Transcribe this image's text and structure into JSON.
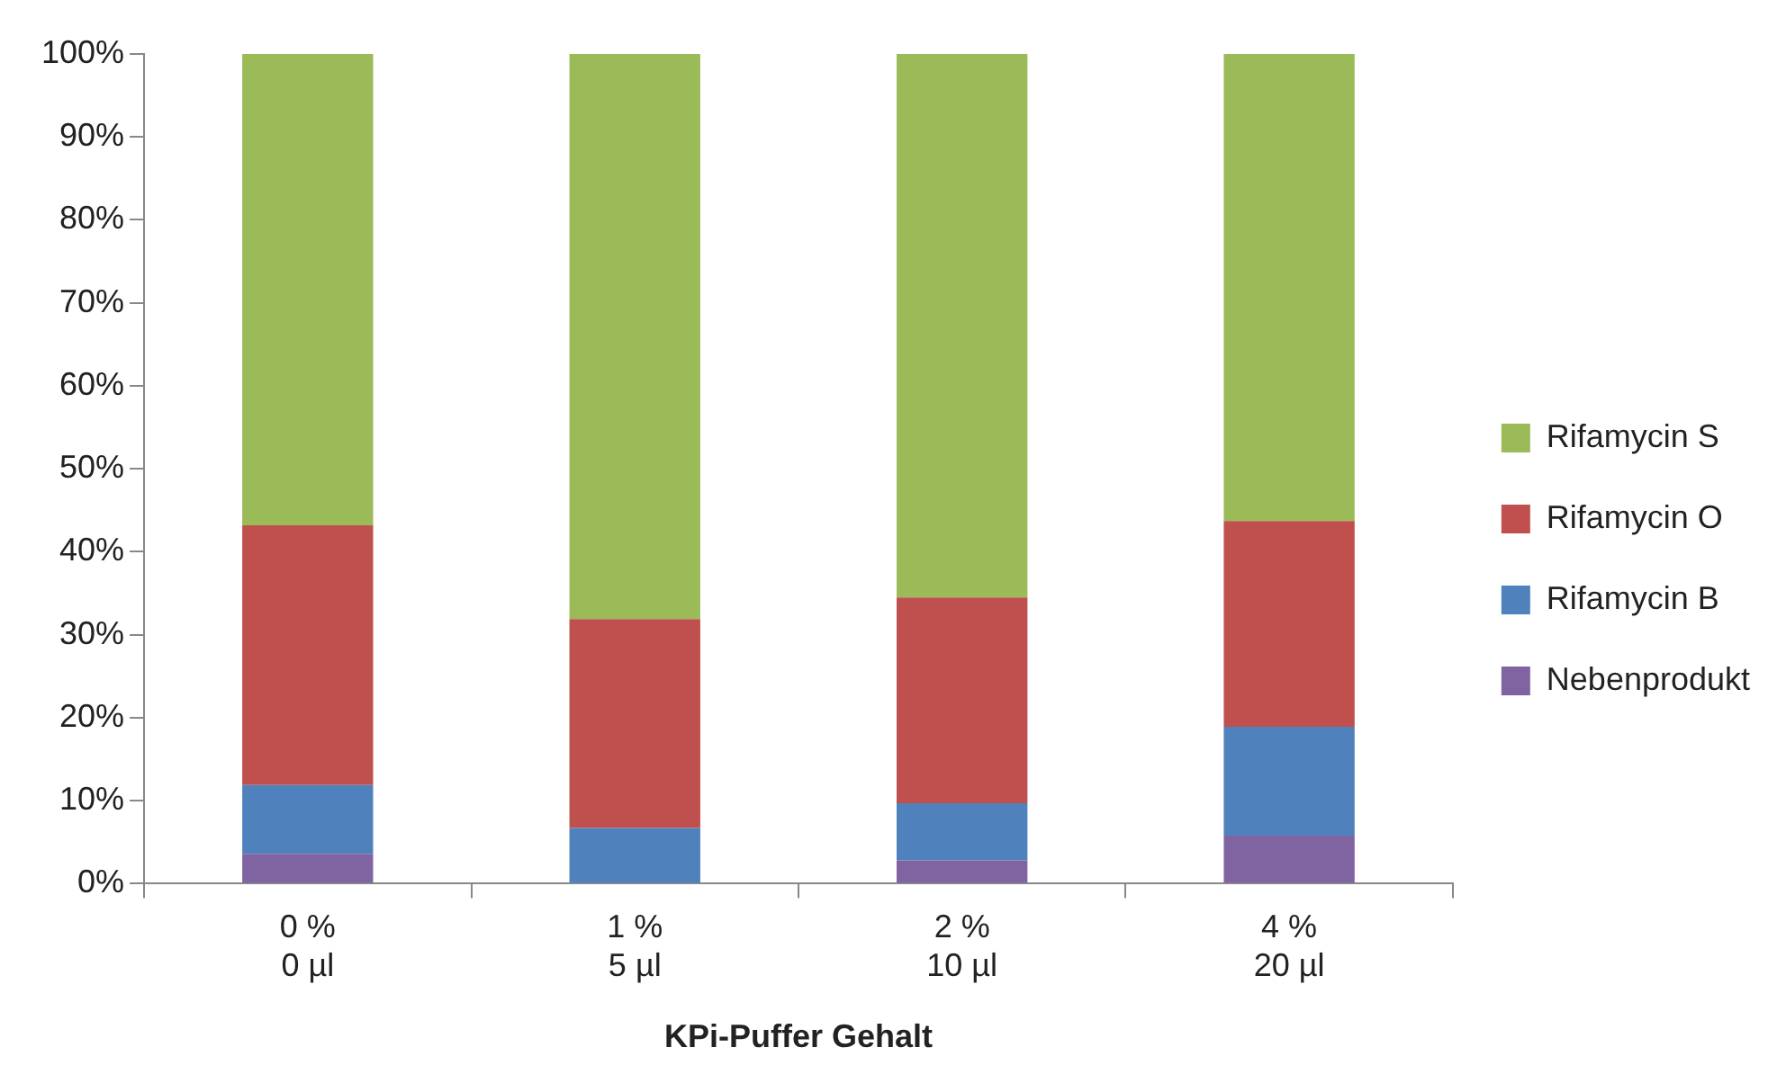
{
  "chart_data": {
    "type": "bar",
    "stacked": true,
    "xlabel": "KPi-Puffer Gehalt",
    "categories": [
      "0 %\n0 µl",
      "1 %\n5 µl",
      "2 %\n10 µl",
      "4 %\n20 µl"
    ],
    "series": [
      {
        "name": "Nebenprodukt",
        "color": "#8064a2",
        "values": [
          3.6,
          0,
          2.8,
          5.8
        ]
      },
      {
        "name": "Rifamycin B",
        "color": "#4f81bd",
        "values": [
          8.3,
          6.7,
          6.9,
          13.1
        ]
      },
      {
        "name": "Rifamycin O",
        "color": "#c0504d",
        "values": [
          31.3,
          25.2,
          24.8,
          24.8
        ]
      },
      {
        "name": "Rifamycin S",
        "color": "#9bbb59",
        "values": [
          56.8,
          68.1,
          65.5,
          56.3
        ]
      }
    ],
    "ylim": [
      0,
      100
    ],
    "yticks": [
      {
        "value": 0,
        "label": "0%"
      },
      {
        "value": 10,
        "label": "10%"
      },
      {
        "value": 20,
        "label": "20%"
      },
      {
        "value": 30,
        "label": "30%"
      },
      {
        "value": 40,
        "label": "40%"
      },
      {
        "value": 50,
        "label": "50%"
      },
      {
        "value": 60,
        "label": "60%"
      },
      {
        "value": 70,
        "label": "70%"
      },
      {
        "value": 80,
        "label": "80%"
      },
      {
        "value": 90,
        "label": "90%"
      },
      {
        "value": 100,
        "label": "100%"
      }
    ],
    "grid": false,
    "legend": "right"
  }
}
